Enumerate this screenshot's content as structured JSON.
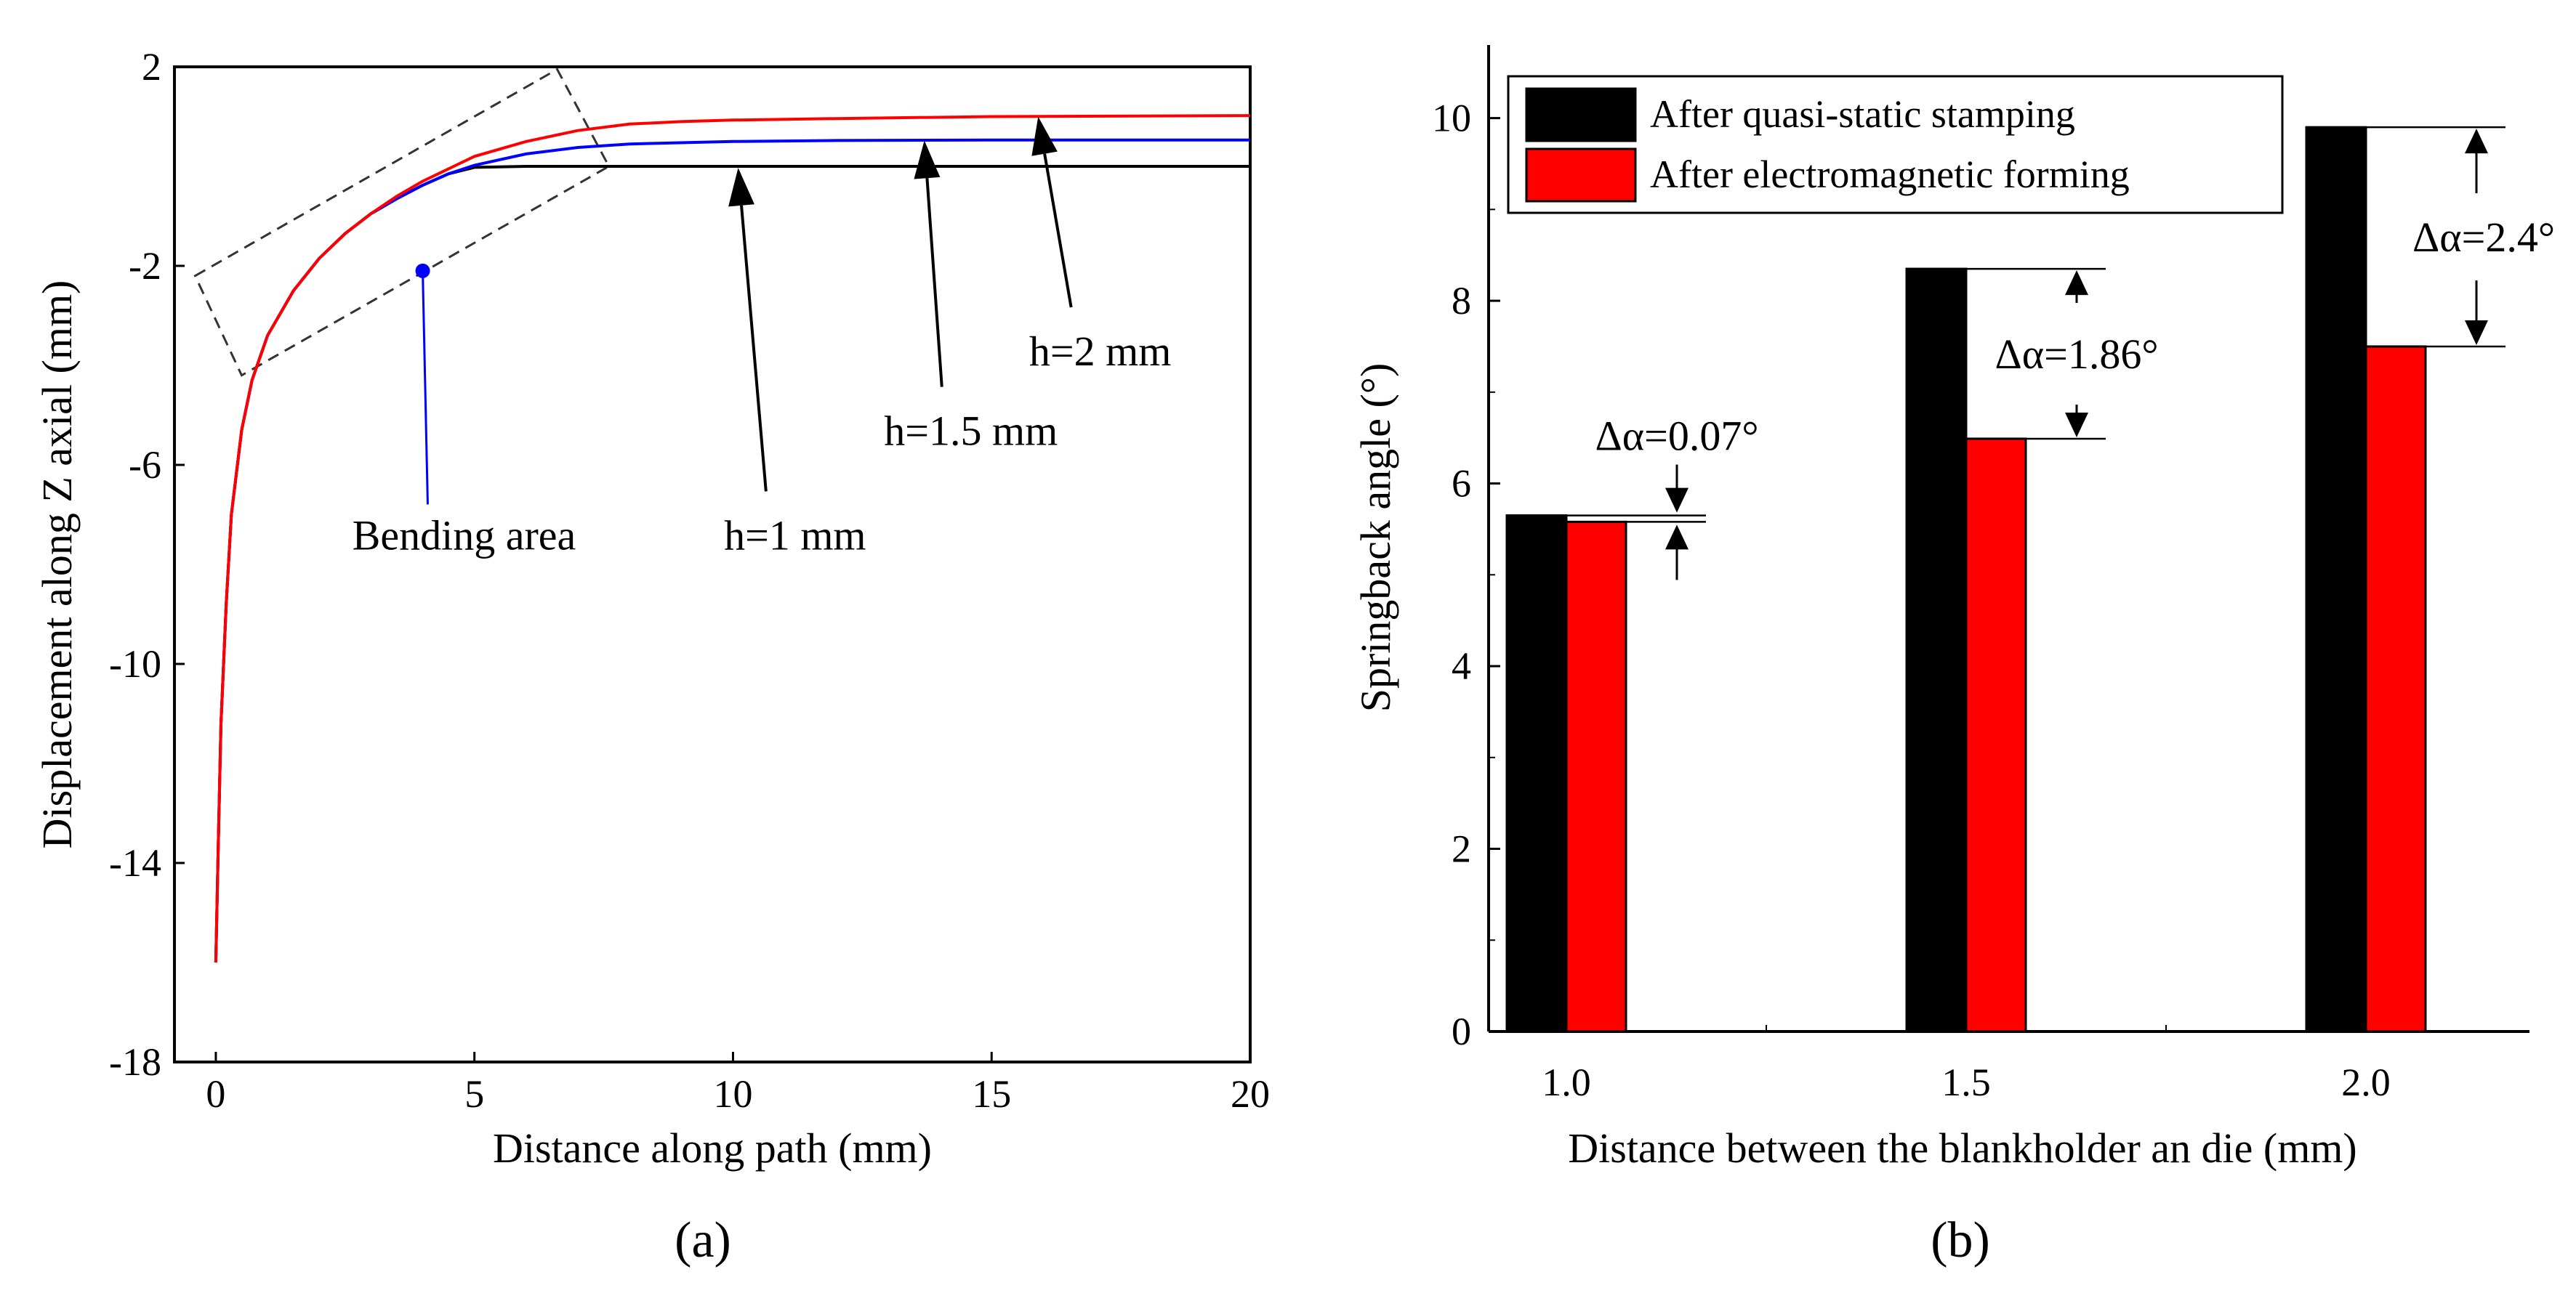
{
  "chart_data": [
    {
      "type": "line",
      "panel_label": "(a)",
      "xlabel": "Distance along path (mm)",
      "ylabel": "Displacement along Z axial (mm)",
      "xlim": [
        -0.8,
        20
      ],
      "ylim": [
        -18,
        2
      ],
      "xticks": [
        0,
        5,
        10,
        15,
        20
      ],
      "yticks": [
        2,
        -2,
        -6,
        -10,
        -14,
        -18
      ],
      "series": [
        {
          "name": "h=1 mm",
          "color": "#000000",
          "x": [
            0,
            0.05,
            0.1,
            0.2,
            0.3,
            0.5,
            0.7,
            1,
            1.5,
            2,
            2.5,
            3,
            3.5,
            4,
            4.5,
            5,
            6,
            8,
            10,
            15,
            20
          ],
          "y": [
            -16,
            -13.5,
            -11.2,
            -8.8,
            -7.0,
            -5.3,
            -4.3,
            -3.4,
            -2.5,
            -1.85,
            -1.35,
            -0.95,
            -0.65,
            -0.38,
            -0.15,
            -0.02,
            0.0,
            0.0,
            0.0,
            0.0,
            0.0
          ]
        },
        {
          "name": "h=1.5 mm",
          "color": "#0000ff",
          "x": [
            0,
            0.05,
            0.1,
            0.2,
            0.3,
            0.5,
            0.7,
            1,
            1.5,
            2,
            2.5,
            3,
            3.5,
            4,
            4.5,
            5,
            6,
            7,
            8,
            10,
            12,
            15,
            20
          ],
          "y": [
            -16,
            -13.5,
            -11.2,
            -8.8,
            -7.0,
            -5.3,
            -4.3,
            -3.4,
            -2.5,
            -1.85,
            -1.35,
            -0.95,
            -0.65,
            -0.38,
            -0.15,
            0.02,
            0.25,
            0.38,
            0.45,
            0.5,
            0.52,
            0.53,
            0.53
          ]
        },
        {
          "name": "h=2 mm",
          "color": "#ff0000",
          "x": [
            0,
            0.05,
            0.1,
            0.2,
            0.3,
            0.5,
            0.7,
            1,
            1.5,
            2,
            2.5,
            3,
            3.5,
            4,
            4.5,
            5,
            6,
            7,
            8,
            9,
            10,
            12,
            15,
            20
          ],
          "y": [
            -16,
            -13.5,
            -11.2,
            -8.8,
            -7.0,
            -5.3,
            -4.3,
            -3.4,
            -2.5,
            -1.85,
            -1.35,
            -0.95,
            -0.6,
            -0.3,
            -0.05,
            0.2,
            0.5,
            0.72,
            0.85,
            0.9,
            0.93,
            0.96,
            1.0,
            1.02
          ]
        }
      ],
      "annotations": [
        {
          "label": "h=1 mm",
          "arrow_to": [
            10.1,
            0.0
          ],
          "text_at": [
            11.2,
            -7.7
          ]
        },
        {
          "label": "h=1.5 mm",
          "arrow_to": [
            13.7,
            0.55
          ],
          "text_at": [
            14.6,
            -5.6
          ]
        },
        {
          "label": "h=2 mm",
          "arrow_to": [
            15.9,
            1.03
          ],
          "text_at": [
            17.1,
            -4.0
          ]
        },
        {
          "label": "Bending area",
          "marker": [
            4.0,
            -2.1
          ],
          "text_at": [
            4.8,
            -7.7
          ]
        }
      ],
      "highlight_box": {
        "label": "Bending area",
        "corners": [
          [
            -0.4,
            -2.2
          ],
          [
            6.6,
            1.95
          ],
          [
            7.6,
            0.0
          ],
          [
            0.5,
            -4.2
          ]
        ]
      }
    },
    {
      "type": "bar",
      "panel_label": "(b)",
      "xlabel": "Distance between the blankholder an die (mm)",
      "ylabel": "Springback angle (°)",
      "categories": [
        "1.0",
        "1.5",
        "2.0"
      ],
      "ylim": [
        0,
        10.8
      ],
      "yticks": [
        0,
        2,
        4,
        6,
        8,
        10
      ],
      "series": [
        {
          "name": "After quasi-static stamping",
          "color": "#000000",
          "values": [
            5.65,
            8.35,
            9.9
          ]
        },
        {
          "name": "After electromagnetic forming",
          "color": "#ff0000",
          "values": [
            5.58,
            6.49,
            7.5
          ]
        }
      ],
      "legend_position": "top-left",
      "annotations": [
        "Δα=0.07°",
        "Δα=1.86°",
        "Δα=2.4°"
      ]
    }
  ]
}
